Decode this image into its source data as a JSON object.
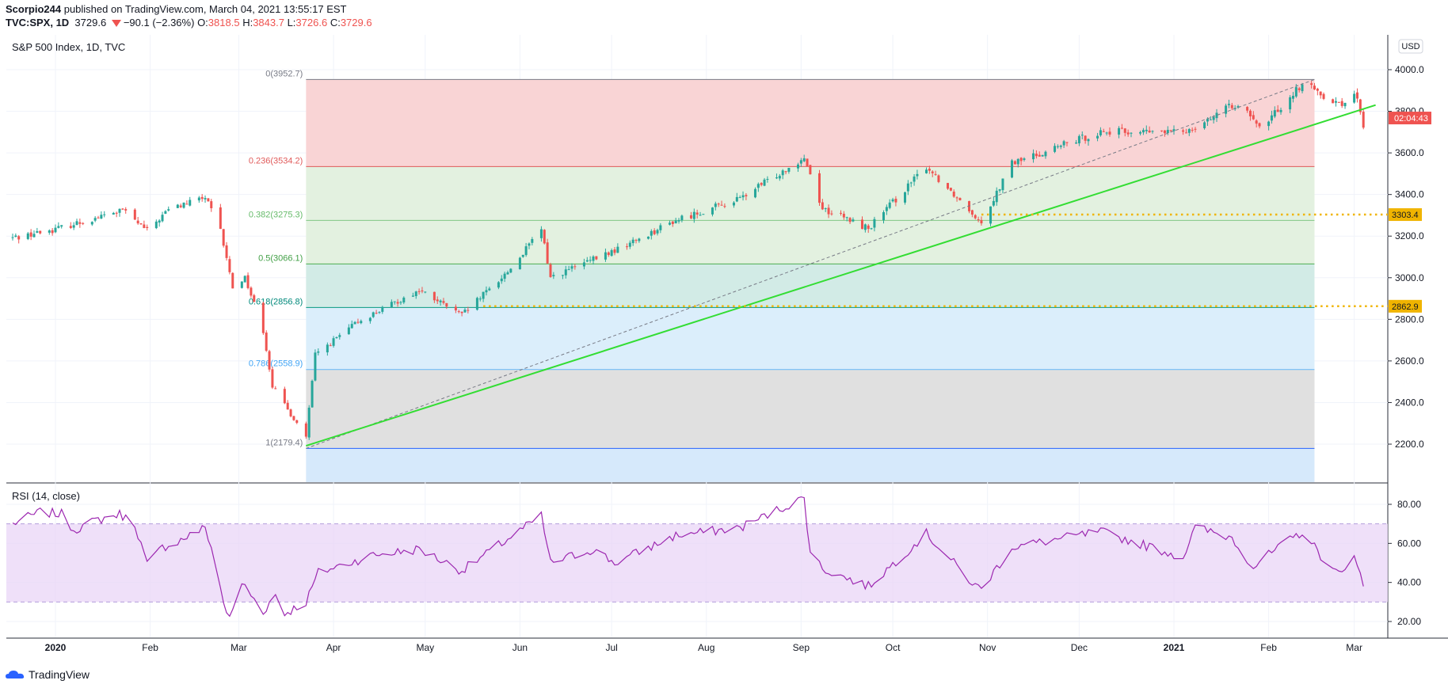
{
  "header": {
    "author": "Scorpio244",
    "published_text": "published on TradingView.com, March 04, 2021 13:55:17 EST",
    "symbol": "TVC:SPX, 1D",
    "last": "3729.6",
    "change": "−90.1 (−2.36%)",
    "open_label": "O:",
    "open": "3818.5",
    "high_label": "H:",
    "high": "3843.7",
    "low_label": "L:",
    "low": "3726.6",
    "close_label": "C:",
    "close": "3729.6"
  },
  "footer": {
    "brand": "TradingView"
  },
  "colors": {
    "up": "#26a69a",
    "down": "#ef5350",
    "trend": "#33dd33",
    "rsi": "#9c27b0",
    "rsi_band": "#e9d5f7",
    "dotted": "#f0b400"
  },
  "chart_data": [
    {
      "type": "candlestick",
      "title": "S&P 500 Index, 1D, TVC",
      "currency": "USD",
      "ylim": [
        2050,
        4100
      ],
      "yticks": [
        "4000.0",
        "3800.0",
        "3600.0",
        "3400.0",
        "3200.0",
        "3000.0",
        "2800.0",
        "2600.0",
        "2400.0",
        "2200.0"
      ],
      "x_labels": [
        "2020",
        "Feb",
        "Mar",
        "Apr",
        "May",
        "Jun",
        "Jul",
        "Aug",
        "Sep",
        "Oct",
        "Nov",
        "Dec",
        "2021",
        "Feb",
        "Mar"
      ],
      "price_label": "02:04:43",
      "horizontal_levels": [
        {
          "value": 3303.4,
          "label": "3303.4"
        },
        {
          "value": 2862.9,
          "label": "2862.9"
        }
      ],
      "fibonacci": [
        {
          "ratio": "0",
          "value": 3952.7,
          "label": "0(3952.7)"
        },
        {
          "ratio": "0.236",
          "value": 3534.2,
          "label": "0.236(3534.2)"
        },
        {
          "ratio": "0.382",
          "value": 3275.3,
          "label": "0.382(3275.3)"
        },
        {
          "ratio": "0.5",
          "value": 3066.1,
          "label": "0.5(3066.1)"
        },
        {
          "ratio": "0.618",
          "value": 2856.8,
          "label": "0.618(2856.8)"
        },
        {
          "ratio": "0.786",
          "value": 2558.9,
          "label": "0.786(2558.9)"
        },
        {
          "ratio": "1",
          "value": 2179.4,
          "label": "1(2179.4)"
        }
      ],
      "close_path": [
        [
          "2019-12-18",
          3192
        ],
        [
          "2019-12-31",
          3230
        ],
        [
          "2020-01-15",
          3290
        ],
        [
          "2020-01-23",
          3325
        ],
        [
          "2020-01-31",
          3225
        ],
        [
          "2020-02-07",
          3328
        ],
        [
          "2020-02-19",
          3386
        ],
        [
          "2020-02-24",
          3225
        ],
        [
          "2020-02-28",
          2954
        ],
        [
          "2020-03-03",
          3003
        ],
        [
          "2020-03-09",
          2746
        ],
        [
          "2020-03-12",
          2480
        ],
        [
          "2020-03-16",
          2386
        ],
        [
          "2020-03-23",
          2237
        ],
        [
          "2020-03-26",
          2630
        ],
        [
          "2020-04-09",
          2789
        ],
        [
          "2020-04-29",
          2939
        ],
        [
          "2020-05-13",
          2820
        ],
        [
          "2020-05-29",
          3044
        ],
        [
          "2020-06-08",
          3232
        ],
        [
          "2020-06-11",
          3002
        ],
        [
          "2020-07-02",
          3130
        ],
        [
          "2020-07-22",
          3276
        ],
        [
          "2020-08-12",
          3380
        ],
        [
          "2020-09-02",
          3580
        ],
        [
          "2020-09-08",
          3332
        ],
        [
          "2020-09-23",
          3237
        ],
        [
          "2020-10-12",
          3534
        ],
        [
          "2020-10-30",
          3270
        ],
        [
          "2020-11-09",
          3550
        ],
        [
          "2020-12-08",
          3702
        ],
        [
          "2021-01-04",
          3700
        ],
        [
          "2021-01-22",
          3841
        ],
        [
          "2021-01-29",
          3714
        ],
        [
          "2021-02-12",
          3934
        ],
        [
          "2021-02-25",
          3829
        ],
        [
          "2021-03-01",
          3901
        ],
        [
          "2021-03-04",
          3729.6
        ]
      ],
      "trendline": {
        "from": [
          "2020-03-23",
          2192
        ],
        "to": [
          "2021-03-08",
          3830
        ]
      }
    },
    {
      "type": "line",
      "title": "RSI (14, close)",
      "ylim": [
        12,
        90
      ],
      "yticks": [
        "80.00",
        "60.00",
        "40.00",
        "20.00"
      ],
      "band": [
        30,
        70
      ],
      "series": [
        {
          "name": "RSI",
          "points": [
            [
              "2019-12-18",
              70
            ],
            [
              "2019-12-27",
              76
            ],
            [
              "2020-01-03",
              75
            ],
            [
              "2020-01-07",
              67
            ],
            [
              "2020-01-15",
              72
            ],
            [
              "2020-01-22",
              75
            ],
            [
              "2020-01-27",
              70
            ],
            [
              "2020-01-31",
              49
            ],
            [
              "2020-02-05",
              58
            ],
            [
              "2020-02-10",
              61
            ],
            [
              "2020-02-19",
              68
            ],
            [
              "2020-02-21",
              58
            ],
            [
              "2020-02-25",
              30
            ],
            [
              "2020-02-27",
              21
            ],
            [
              "2020-03-02",
              40
            ],
            [
              "2020-03-09",
              25
            ],
            [
              "2020-03-13",
              34
            ],
            [
              "2020-03-16",
              24
            ],
            [
              "2020-03-23",
              30
            ],
            [
              "2020-03-27",
              45
            ],
            [
              "2020-04-14",
              54
            ],
            [
              "2020-04-29",
              57
            ],
            [
              "2020-05-13",
              46
            ],
            [
              "2020-05-26",
              60
            ],
            [
              "2020-06-08",
              74
            ],
            [
              "2020-06-11",
              50
            ],
            [
              "2020-06-25",
              57
            ],
            [
              "2020-07-02",
              50
            ],
            [
              "2020-07-22",
              64
            ],
            [
              "2020-08-12",
              68
            ],
            [
              "2020-08-31",
              82
            ],
            [
              "2020-09-02",
              83
            ],
            [
              "2020-09-04",
              56
            ],
            [
              "2020-09-08",
              47
            ],
            [
              "2020-09-23",
              38
            ],
            [
              "2020-10-12",
              65
            ],
            [
              "2020-10-28",
              38
            ],
            [
              "2020-10-30",
              37
            ],
            [
              "2020-11-09",
              58
            ],
            [
              "2020-12-08",
              66
            ],
            [
              "2021-01-04",
              53
            ],
            [
              "2021-01-08",
              68
            ],
            [
              "2021-01-20",
              63
            ],
            [
              "2021-01-27",
              48
            ],
            [
              "2021-02-01",
              54
            ],
            [
              "2021-02-12",
              66
            ],
            [
              "2021-02-22",
              46
            ],
            [
              "2021-02-25",
              44
            ],
            [
              "2021-03-01",
              56
            ],
            [
              "2021-03-04",
              38
            ]
          ]
        }
      ]
    }
  ]
}
